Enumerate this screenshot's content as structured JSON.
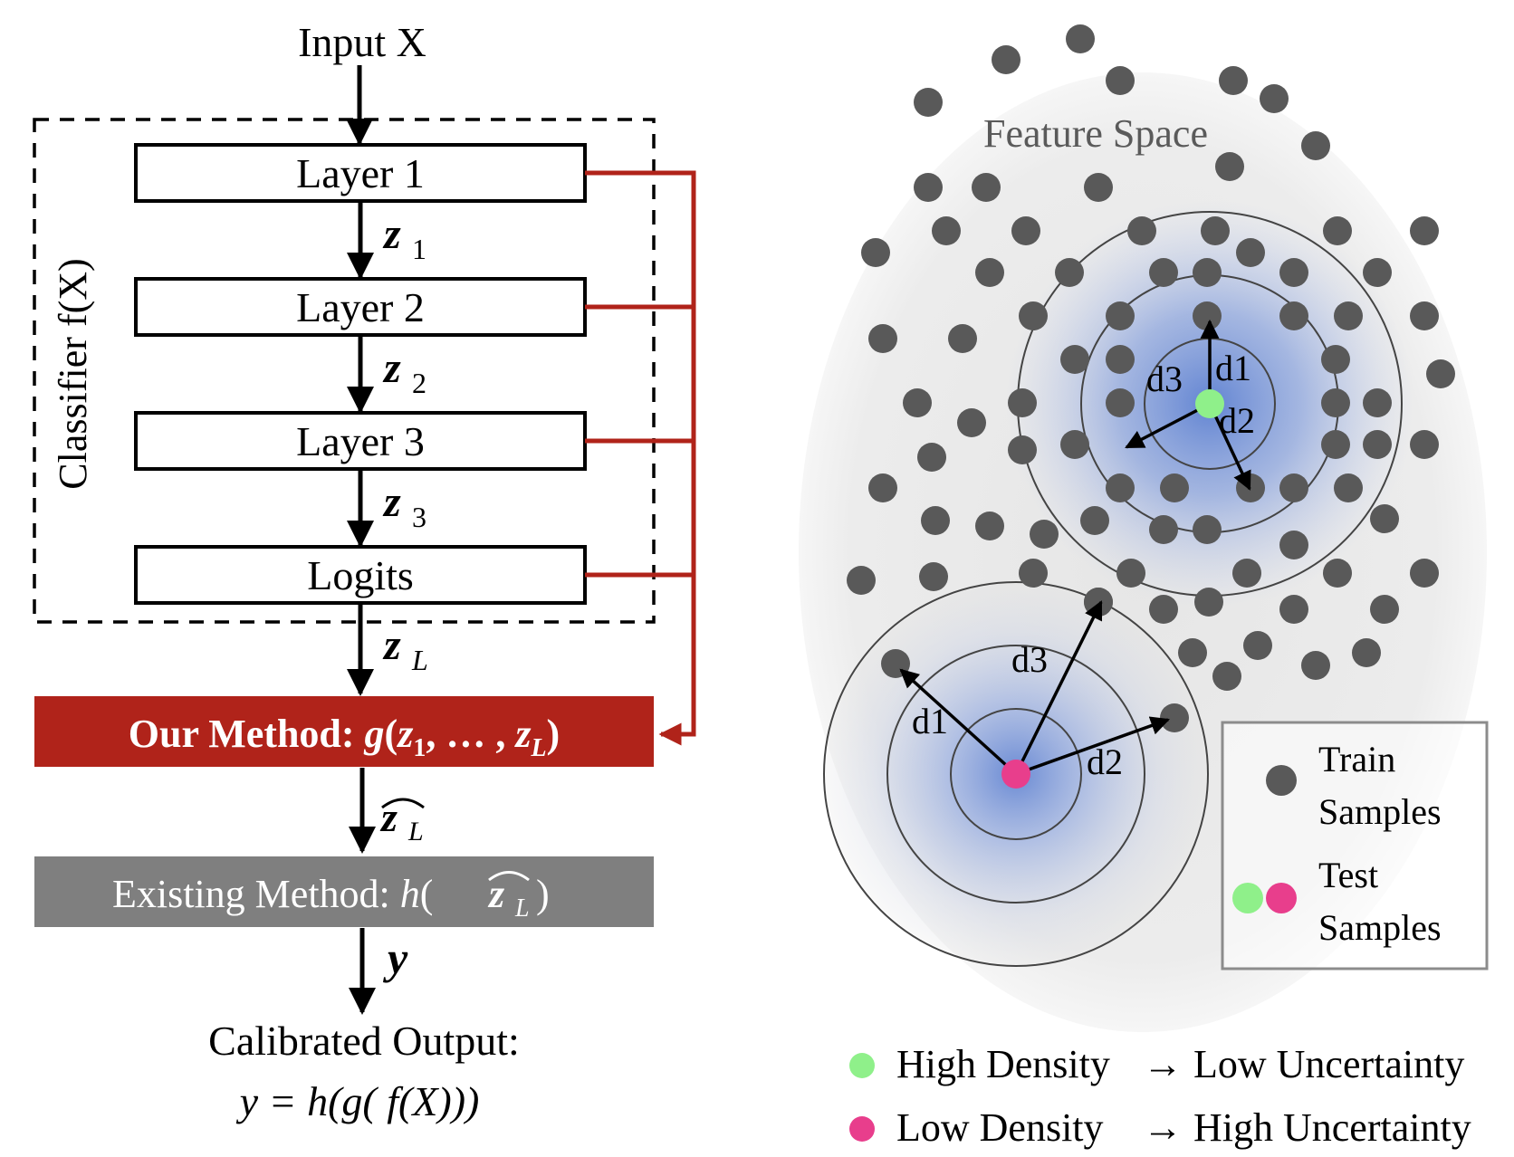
{
  "pipeline": {
    "input_label": "Input X",
    "classifier_label": "Classifier f(X)",
    "layers": [
      "Layer 1",
      "Layer 2",
      "Layer 3",
      "Logits"
    ],
    "z_labels": [
      {
        "base": "z",
        "sub": "1"
      },
      {
        "base": "z",
        "sub": "2"
      },
      {
        "base": "z",
        "sub": "3"
      },
      {
        "base": "z",
        "sub": "L"
      }
    ],
    "our_method": {
      "prefix": "Our Method: ",
      "func": "g",
      "args_open": "(",
      "arg1": "z",
      "arg1_sub": "1",
      "sep": ", … , ",
      "argL": "z",
      "argL_sub": "L",
      "args_close": ")"
    },
    "zhat_label": {
      "base": "z",
      "sub": "L"
    },
    "existing_method": {
      "prefix": "Existing Method: ",
      "func": "h",
      "arg": "z",
      "arg_sub": "L"
    },
    "y_label": "y",
    "output_title": "Calibrated Output:",
    "output_formula": "y = h(g( f(X)))"
  },
  "feature_space": {
    "title": "Feature Space",
    "cluster_high": {
      "labels": [
        "d1",
        "d2",
        "d3"
      ]
    },
    "cluster_low": {
      "labels": [
        "d1",
        "d2",
        "d3"
      ]
    },
    "legend": {
      "train": "Train Samples",
      "train_lines": [
        "Train",
        "Samples"
      ],
      "test": "Test Samples",
      "test_lines": [
        "Test",
        "Samples"
      ]
    },
    "footer": [
      {
        "density": "High Density",
        "arrow": "→",
        "uncertainty": "Low Uncertainty"
      },
      {
        "density": "Low Density",
        "arrow": "→",
        "uncertainty": "High Uncertainty"
      }
    ]
  },
  "colors": {
    "red": "#b0231a",
    "gray_box": "#7f7f7f",
    "dot": "#595959",
    "green": "#8ff08a",
    "pink": "#e83e8c",
    "blue_glow": "#5b7fd1",
    "space_bg": "#eeeeee",
    "legend_border": "#8c8c8c"
  },
  "icons": {
    "train": "gray-dot-icon",
    "test_green": "green-dot-icon",
    "test_pink": "pink-dot-icon"
  }
}
